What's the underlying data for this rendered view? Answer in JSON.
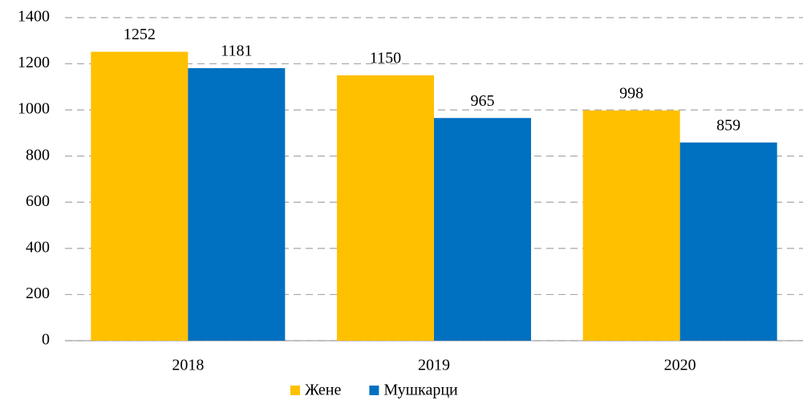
{
  "chart_data": {
    "type": "bar",
    "categories": [
      "2018",
      "2019",
      "2020"
    ],
    "series": [
      {
        "name": "Жене",
        "color": "#ffc000",
        "values": [
          1252,
          1150,
          998
        ]
      },
      {
        "name": "Мушкарци",
        "color": "#0070c0",
        "values": [
          1181,
          965,
          859
        ]
      }
    ],
    "ylim": [
      0,
      1400
    ],
    "yticks": [
      0,
      200,
      400,
      600,
      800,
      1000,
      1200,
      1400
    ],
    "grid": true,
    "legend": "bottom"
  }
}
